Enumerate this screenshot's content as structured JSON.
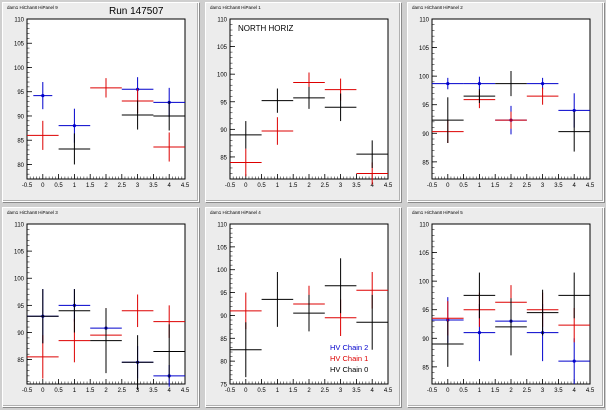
{
  "run_label": "Run 147507",
  "colors": {
    "chain2": "#0000cc",
    "chain1": "#dd0000",
    "chain0": "#000000",
    "frame": "#000000"
  },
  "chart_data": [
    {
      "type": "scatter",
      "error_bars": true,
      "grid": false,
      "title": "",
      "panel_tag": "dam1 HiChan8 HiPanel 9",
      "xlim": [
        -0.5,
        4.5
      ],
      "ylim": [
        77,
        110
      ],
      "xticks": [
        "-0.5",
        "0",
        "0.5",
        "1",
        "1.5",
        "2",
        "2.5",
        "3",
        "3.5",
        "4",
        "4.5"
      ],
      "yticks": [
        "80",
        "85",
        "90",
        "95",
        "100",
        "105",
        "110"
      ],
      "series": [
        {
          "key": "chain2",
          "points": [
            [
              0,
              94.2,
              0.3,
              2.8
            ],
            [
              1,
              88,
              0.5,
              3.5
            ],
            [
              3,
              95.5,
              0.5,
              2.5
            ],
            [
              4,
              92.8,
              0.5,
              3.0
            ]
          ]
        },
        {
          "key": "chain1",
          "points": [
            [
              0,
              86,
              0.5,
              3.0
            ],
            [
              2,
              95.8,
              0.5,
              2.0
            ],
            [
              3,
              93.1,
              0.5,
              2.5
            ],
            [
              4,
              83.6,
              0.5,
              3.0
            ]
          ]
        },
        {
          "key": "chain0",
          "points": [
            [
              1,
              83.2,
              0.5,
              3.2
            ],
            [
              3,
              90.2,
              0.5,
              3.0
            ],
            [
              4,
              90,
              0.5,
              3.0
            ]
          ]
        }
      ]
    },
    {
      "type": "scatter",
      "error_bars": true,
      "grid": false,
      "title": "NORTH HORIZ",
      "panel_tag": "dam1 HiChan8 HiPanel 1",
      "xlim": [
        -0.5,
        4.5
      ],
      "ylim": [
        81,
        110
      ],
      "xticks": [
        "-0.5",
        "0",
        "0.5",
        "1",
        "1.5",
        "2",
        "2.5",
        "3",
        "3.5",
        "4",
        "4.5"
      ],
      "yticks": [
        "85",
        "90",
        "95",
        "100",
        "105",
        "110"
      ],
      "series": [
        {
          "key": "chain2",
          "points": []
        },
        {
          "key": "chain1",
          "points": [
            [
              0,
              84,
              0.5,
              2.5
            ],
            [
              1,
              89.7,
              0.5,
              2.5
            ],
            [
              2,
              98.5,
              0.5,
              1.8
            ],
            [
              3,
              97.2,
              0.5,
              2.0
            ],
            [
              4,
              82,
              0.5,
              2.0
            ]
          ]
        },
        {
          "key": "chain0",
          "points": [
            [
              0,
              89,
              0.5,
              2.5
            ],
            [
              1,
              95.2,
              0.5,
              2.2
            ],
            [
              2,
              95.7,
              0.5,
              2.0
            ],
            [
              3,
              94,
              0.5,
              2.5
            ],
            [
              4,
              85.5,
              0.5,
              2.5
            ]
          ]
        }
      ]
    },
    {
      "type": "scatter",
      "error_bars": true,
      "grid": false,
      "title": "",
      "panel_tag": "dam1 HiChan8 HiPanel 2",
      "xlim": [
        -0.5,
        4.5
      ],
      "ylim": [
        82,
        110
      ],
      "xticks": [
        "-0.5",
        "0",
        "0.5",
        "1",
        "1.5",
        "2",
        "2.5",
        "3",
        "3.5",
        "4",
        "4.5"
      ],
      "yticks": [
        "85",
        "90",
        "95",
        "100",
        "105",
        "110"
      ],
      "series": [
        {
          "key": "chain2",
          "points": [
            [
              0,
              98.7,
              0.5,
              1.0
            ],
            [
              1,
              98.7,
              0.5,
              1.2
            ],
            [
              2,
              92.3,
              0.5,
              2.5
            ],
            [
              3,
              98.7,
              0.5,
              1.0
            ],
            [
              4,
              94,
              0.5,
              3.0
            ]
          ]
        },
        {
          "key": "chain1",
          "points": [
            [
              0,
              90.3,
              0.5,
              2.0
            ],
            [
              1,
              95.9,
              0.5,
              1.5
            ],
            [
              2,
              92.3,
              0.5,
              1.5
            ],
            [
              3,
              96.5,
              0.5,
              1.5
            ]
          ]
        },
        {
          "key": "chain0",
          "points": [
            [
              0,
              92.3,
              0.5,
              4.0
            ],
            [
              1,
              96.5,
              0.5,
              1.2
            ],
            [
              2,
              98.7,
              0.5,
              2.2
            ],
            [
              4,
              90.3,
              0.5,
              3.5
            ]
          ]
        }
      ]
    },
    {
      "type": "scatter",
      "error_bars": true,
      "grid": false,
      "title": "",
      "panel_tag": "dam1 HiChan8 HiPanel 3",
      "xlim": [
        -0.5,
        4.5
      ],
      "ylim": [
        80.5,
        110
      ],
      "xticks": [
        "-0.5",
        "0",
        "0.5",
        "1",
        "1.5",
        "2",
        "2.5",
        "3",
        "3.5",
        "4",
        "4.5"
      ],
      "yticks": [
        "85",
        "90",
        "95",
        "100",
        "105",
        "110"
      ],
      "series": [
        {
          "key": "chain2",
          "points": [
            [
              0,
              93,
              0.5,
              5.0
            ],
            [
              1,
              95,
              0.5,
              3.0
            ],
            [
              2,
              90.8,
              0.5,
              3.0
            ],
            [
              3,
              84.5,
              0.5,
              3.0
            ],
            [
              4,
              82,
              0.5,
              2.0
            ]
          ]
        },
        {
          "key": "chain1",
          "points": [
            [
              0,
              85.5,
              0.5,
              4.0
            ],
            [
              1,
              88.5,
              0.5,
              4.0
            ],
            [
              2,
              89.5,
              0.5,
              5.0
            ],
            [
              3,
              94,
              0.5,
              3.0
            ],
            [
              4,
              92,
              0.5,
              3.0
            ]
          ]
        },
        {
          "key": "chain0",
          "points": [
            [
              0,
              93,
              0.5,
              5.0
            ],
            [
              1,
              94,
              0.5,
              4.0
            ],
            [
              2,
              88.5,
              0.5,
              6.0
            ],
            [
              3,
              84.5,
              0.5,
              5.0
            ],
            [
              4,
              86.5,
              0.5,
              5.0
            ]
          ]
        }
      ]
    },
    {
      "type": "scatter",
      "error_bars": true,
      "grid": false,
      "title": "",
      "panel_tag": "dam1 HiChan8 HiPanel 4",
      "xlim": [
        -0.5,
        4.5
      ],
      "ylim": [
        75,
        110
      ],
      "xticks": [
        "-0.5",
        "0",
        "0.5",
        "1",
        "1.5",
        "2",
        "2.5",
        "3",
        "3.5",
        "4",
        "4.5"
      ],
      "yticks": [
        "75",
        "80",
        "85",
        "90",
        "95",
        "100",
        "105",
        "110"
      ],
      "legend": {
        "position": "bottom-right",
        "entries": [
          {
            "key": "chain2",
            "label": "HV Chain 2"
          },
          {
            "key": "chain1",
            "label": "HV Chain 1"
          },
          {
            "key": "chain0",
            "label": "HV Chain 0"
          }
        ]
      },
      "series": [
        {
          "key": "chain2",
          "points": []
        },
        {
          "key": "chain1",
          "points": [
            [
              0,
              91,
              0.5,
              4.0
            ],
            [
              2,
              92.5,
              0.5,
              4.0
            ],
            [
              3,
              89.5,
              0.5,
              4.0
            ],
            [
              4,
              95.5,
              0.5,
              4.0
            ]
          ]
        },
        {
          "key": "chain0",
          "points": [
            [
              0,
              82.5,
              0.5,
              6.0
            ],
            [
              1,
              93.5,
              0.5,
              6.0
            ],
            [
              2,
              90.5,
              0.5,
              4.0
            ],
            [
              3,
              96.5,
              0.5,
              6.0
            ],
            [
              4,
              88.5,
              0.5,
              6.0
            ]
          ]
        }
      ]
    },
    {
      "type": "scatter",
      "error_bars": true,
      "grid": false,
      "title": "",
      "panel_tag": "dam1 HiChan8 HiPanel 5",
      "xlim": [
        -0.5,
        4.5
      ],
      "ylim": [
        82,
        110
      ],
      "xticks": [
        "-0.5",
        "0",
        "0.5",
        "1",
        "1.5",
        "2",
        "2.5",
        "3",
        "3.5",
        "4",
        "4.5"
      ],
      "yticks": [
        "85",
        "90",
        "95",
        "100",
        "105",
        "110"
      ],
      "series": [
        {
          "key": "chain2",
          "points": [
            [
              0,
              93.2,
              0.5,
              4.0
            ],
            [
              1,
              91,
              0.5,
              5.0
            ],
            [
              2,
              93,
              0.5,
              3.5
            ],
            [
              3,
              91,
              0.5,
              5.0
            ],
            [
              4,
              86,
              0.5,
              4.0
            ]
          ]
        },
        {
          "key": "chain1",
          "points": [
            [
              0,
              93.5,
              0.5,
              3.0
            ],
            [
              1,
              95,
              0.5,
              3.0
            ],
            [
              2,
              96.3,
              0.5,
              3.0
            ],
            [
              3,
              95,
              0.5,
              3.0
            ],
            [
              4,
              92.3,
              0.5,
              3.0
            ]
          ]
        },
        {
          "key": "chain0",
          "points": [
            [
              0,
              89,
              0.5,
              4.0
            ],
            [
              1,
              97.5,
              0.5,
              4.0
            ],
            [
              2,
              92,
              0.5,
              5.0
            ],
            [
              3,
              94.5,
              0.5,
              4.0
            ],
            [
              4,
              97.5,
              0.5,
              4.0
            ]
          ]
        }
      ]
    }
  ]
}
